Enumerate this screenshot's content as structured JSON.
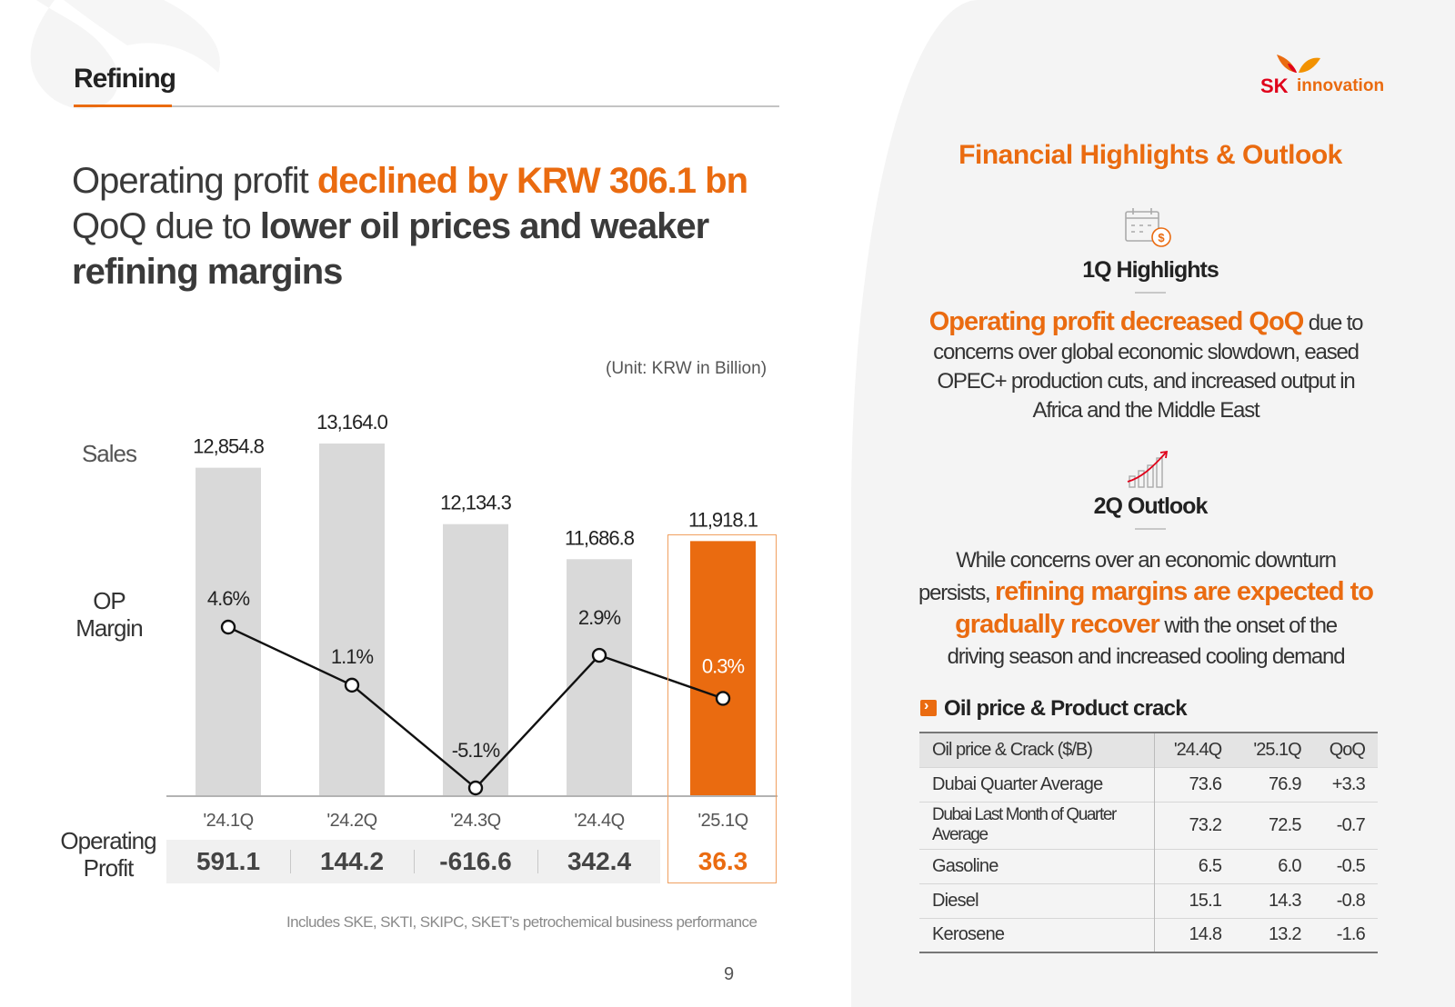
{
  "header": {
    "section_title": "Refining",
    "brand_sk": "SK",
    "brand_innovation": "innovation"
  },
  "headline": {
    "part1": "Operating profit ",
    "highlight1": "declined by KRW 306.1 bn",
    "part2": "QoQ due to ",
    "bold1": "lower oil prices and weaker",
    "bold2": "refining margins"
  },
  "chart_labels": {
    "unit": "(Unit: KRW in Billion)",
    "sales_label": "Sales",
    "op_margin_label_1": "OP",
    "op_margin_label_2": "Margin",
    "op_label_1": "Operating",
    "op_label_2": "Profit"
  },
  "chart_data": {
    "type": "bar",
    "categories": [
      "'24.1Q",
      "'24.2Q",
      "'24.3Q",
      "'24.4Q",
      "'25.1Q"
    ],
    "series": [
      {
        "name": "Sales",
        "type": "bar",
        "values": [
          12854.8,
          13164.0,
          12134.3,
          11686.8,
          11918.1
        ],
        "labels": [
          "12,854.8",
          "13,164.0",
          "12,134.3",
          "11,686.8",
          "11,918.1"
        ]
      },
      {
        "name": "OP Margin",
        "type": "line",
        "unit": "%",
        "values": [
          4.6,
          1.1,
          -5.1,
          2.9,
          0.3
        ],
        "labels": [
          "4.6%",
          "1.1%",
          "-5.1%",
          "2.9%",
          "0.3%"
        ]
      },
      {
        "name": "Operating Profit",
        "type": "table",
        "values": [
          591.1,
          144.2,
          -616.6,
          342.4,
          36.3
        ],
        "labels": [
          "591.1",
          "144.2",
          "-616.6",
          "342.4",
          "36.3"
        ]
      }
    ],
    "highlight_index": 4,
    "colors": {
      "bar": "#d9d9d9",
      "bar_highlight": "#ea6b10",
      "line": "#111111",
      "accent": "#ea6b10"
    }
  },
  "footnote": "Includes SKE, SKTI, SKIPC, SKET’s petrochemical business performance",
  "page_number": "9",
  "right_panel": {
    "heading": "Financial Highlights & Outlook",
    "highlights_icon": "calendar-dollar-icon",
    "highlights_title": "1Q Highlights",
    "highlights_orange": "Operating profit decreased QoQ",
    "highlights_text_1": " due to",
    "highlights_text_2": "concerns over global economic slowdown, eased",
    "highlights_text_3": "OPEC+ production cuts, and increased output in",
    "highlights_text_4": "Africa and the Middle East",
    "outlook_icon": "bar-chart-rising-icon",
    "outlook_title": "2Q Outlook",
    "outlook_text_1": "While concerns over an economic downturn",
    "outlook_text_2": "persists, ",
    "outlook_orange_1": "refining margins are expected to",
    "outlook_orange_2": "gradually recover",
    "outlook_text_3": " with the onset of the",
    "outlook_text_4": "driving season and increased cooling demand",
    "table_title": "Oil price & Product crack",
    "table": {
      "headers": [
        "Oil price & Crack ($/B)",
        "'24.4Q",
        "'25.1Q",
        "QoQ"
      ],
      "rows": [
        [
          "Dubai Quarter Average",
          "73.6",
          "76.9",
          "+3.3"
        ],
        [
          "Dubai Last Month of Quarter Average",
          "73.2",
          "72.5",
          "-0.7"
        ],
        [
          "Gasoline",
          "6.5",
          "6.0",
          "-0.5"
        ],
        [
          "Diesel",
          "15.1",
          "14.3",
          "-0.8"
        ],
        [
          "Kerosene",
          "14.8",
          "13.2",
          "-1.6"
        ]
      ]
    }
  }
}
